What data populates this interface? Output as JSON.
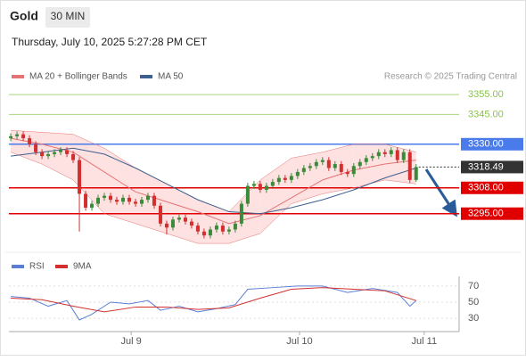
{
  "header": {
    "symbol": "Gold",
    "interval": "30 MIN",
    "timestamp": "Thursday, July 10, 2025 5:27:28 PM CET"
  },
  "chart_data": [
    {
      "type": "candlestick",
      "source": "Research © 2025 Trading Central",
      "up_color": "#3a8a3a",
      "down_color": "#d32f2f",
      "xlim": [
        -0.3,
        71.9
      ],
      "ylim": [
        3276,
        3360
      ],
      "open": [
        3333,
        3334,
        3335,
        3333,
        3330,
        3326,
        3324,
        3325,
        3326,
        3327,
        3325,
        3322,
        3305,
        3298,
        3300,
        3303,
        3304,
        3302,
        3301,
        3303,
        3301,
        3300,
        3302,
        3304,
        3299,
        3290,
        3288,
        3292,
        3293,
        3291,
        3289,
        3286,
        3284,
        3287,
        3289,
        3286,
        3287,
        3290,
        3300,
        3309,
        3310,
        3307,
        3309,
        3311,
        3313,
        3312,
        3314,
        3316,
        3318,
        3319,
        3321,
        3322,
        3318,
        3320,
        3316,
        3315,
        3319,
        3321,
        3323,
        3324,
        3326,
        3325,
        3327,
        3322,
        3326,
        3312
      ],
      "high": [
        3335.5,
        3336.5,
        3336.5,
        3334.5,
        3331.5,
        3327.5,
        3326.5,
        3327.5,
        3328.5,
        3328.5,
        3326.5,
        3323.5,
        3306.5,
        3301.5,
        3304.5,
        3305.5,
        3305.5,
        3303.5,
        3304.5,
        3304.5,
        3302.5,
        3303.5,
        3305.5,
        3305.5,
        3300.5,
        3291.5,
        3293.5,
        3294.5,
        3294.5,
        3292.5,
        3290.5,
        3287.5,
        3288.5,
        3290.5,
        3290.5,
        3288.5,
        3291.5,
        3301.5,
        3310.5,
        3311.5,
        3311.5,
        3310.5,
        3312.5,
        3314.5,
        3314.5,
        3315.5,
        3317.5,
        3319.5,
        3320.5,
        3322.5,
        3323.5,
        3323.5,
        3321.5,
        3321.5,
        3317.5,
        3320.5,
        3322.5,
        3324.5,
        3325.5,
        3327.5,
        3327.5,
        3328.5,
        3328.5,
        3327.5,
        3327.5,
        3320
      ],
      "low": [
        3331.5,
        3332.5,
        3331.5,
        3328.5,
        3324.5,
        3322.5,
        3322.5,
        3323.5,
        3324.5,
        3323.5,
        3320.5,
        3286,
        3296.5,
        3296.5,
        3298.5,
        3301.5,
        3300.5,
        3299.5,
        3299.5,
        3299.5,
        3298.5,
        3298.5,
        3300.5,
        3297.5,
        3288.5,
        3284.5,
        3286.5,
        3290.5,
        3289.5,
        3287.5,
        3284.5,
        3282.5,
        3282.5,
        3285.5,
        3284.5,
        3284.5,
        3285.5,
        3288.5,
        3298.5,
        3307.5,
        3305.5,
        3305.5,
        3307.5,
        3309.5,
        3310.5,
        3310.5,
        3312.5,
        3314.5,
        3316.5,
        3317.5,
        3319.5,
        3316.5,
        3316.5,
        3314.5,
        3313.5,
        3313.5,
        3317.5,
        3319.5,
        3321.5,
        3322.5,
        3323.5,
        3323.5,
        3320.5,
        3320.5,
        3310.5,
        3311
      ],
      "close": [
        3334,
        3335,
        3333,
        3330,
        3326,
        3324,
        3325,
        3326,
        3327,
        3325,
        3322,
        3305,
        3298,
        3300,
        3303,
        3304,
        3302,
        3301,
        3303,
        3301,
        3300,
        3302,
        3304,
        3299,
        3290,
        3288,
        3292,
        3293,
        3291,
        3289,
        3286,
        3284,
        3287,
        3289,
        3286,
        3287,
        3290,
        3300,
        3309,
        3310,
        3307,
        3309,
        3311,
        3313,
        3312,
        3314,
        3316,
        3318,
        3319,
        3321,
        3322,
        3318,
        3320,
        3316,
        3315,
        3319,
        3321,
        3323,
        3324,
        3326,
        3325,
        3327,
        3322,
        3326,
        3312,
        3318.49
      ],
      "series": [
        {
          "name": "MA 20 + Bollinger Bands",
          "color": "#e57373",
          "band_color": "#fdd5d5",
          "x": [
            0,
            5,
            10,
            15,
            20,
            25,
            30,
            35,
            40,
            45,
            50,
            55,
            60,
            65
          ],
          "values": [
            3333,
            3330,
            3326,
            3316,
            3306,
            3301,
            3296,
            3290,
            3294,
            3303,
            3312,
            3317,
            3320,
            3322
          ],
          "upper": [
            3337,
            3336,
            3335,
            3328,
            3318,
            3310,
            3302,
            3296,
            3312,
            3323,
            3326,
            3330,
            3330,
            3326
          ],
          "lower": [
            3326,
            3320,
            3312,
            3295,
            3290,
            3285,
            3280,
            3280,
            3285,
            3300,
            3305,
            3308,
            3312,
            3310
          ]
        },
        {
          "name": "MA 50",
          "color": "#3f5f8f",
          "x": [
            0,
            10,
            15,
            20,
            25,
            30,
            35,
            40,
            45,
            50,
            55,
            60,
            65
          ],
          "values": [
            3324,
            3328,
            3325,
            3318,
            3310,
            3302,
            3296,
            3295,
            3298,
            3302,
            3307,
            3313,
            3318
          ]
        }
      ],
      "levels": [
        {
          "value": 3355,
          "label": "3355.00",
          "color": "#8bc34a",
          "style": "text"
        },
        {
          "value": 3345,
          "label": "3345.00",
          "color": "#8bc34a",
          "style": "text"
        },
        {
          "value": 3330,
          "label": "3330.00",
          "color": "#4a7bea",
          "style": "tag"
        },
        {
          "value": 3308,
          "label": "3308.00",
          "color": "#e00000",
          "style": "tag"
        },
        {
          "value": 3295,
          "label": "3295.00",
          "color": "#e00000",
          "style": "tag"
        }
      ],
      "last": {
        "value": 3318.49,
        "label": "3318.49",
        "color": "#333333"
      }
    },
    {
      "type": "line",
      "xlim": [
        -0.3,
        71.9
      ],
      "ylim": [
        18,
        82
      ],
      "yticks": [
        30,
        50,
        70
      ],
      "xticks": [
        {
          "value": 19.3,
          "label": "Jul 9"
        },
        {
          "value": 46.3,
          "label": "Jul 10"
        },
        {
          "value": 66.3,
          "label": "Jul 11"
        }
      ],
      "series": [
        {
          "name": "RSI",
          "color": "#5b7fd6",
          "x": [
            0,
            3,
            6,
            9,
            11,
            13,
            16,
            19,
            22,
            24,
            27,
            30,
            33,
            36,
            38,
            42,
            46,
            50,
            54,
            58,
            62,
            64,
            65
          ],
          "values": [
            57,
            55,
            45,
            52,
            28,
            35,
            50,
            48,
            52,
            40,
            45,
            38,
            42,
            47,
            66,
            68,
            70,
            70,
            62,
            67,
            62,
            45,
            52
          ]
        },
        {
          "name": "9MA",
          "color": "#d32f2f",
          "x": [
            0,
            5,
            10,
            15,
            20,
            25,
            30,
            35,
            40,
            45,
            50,
            55,
            60,
            65
          ],
          "values": [
            55,
            53,
            45,
            38,
            44,
            44,
            41,
            43,
            55,
            66,
            68,
            66,
            64,
            52
          ]
        }
      ]
    }
  ]
}
